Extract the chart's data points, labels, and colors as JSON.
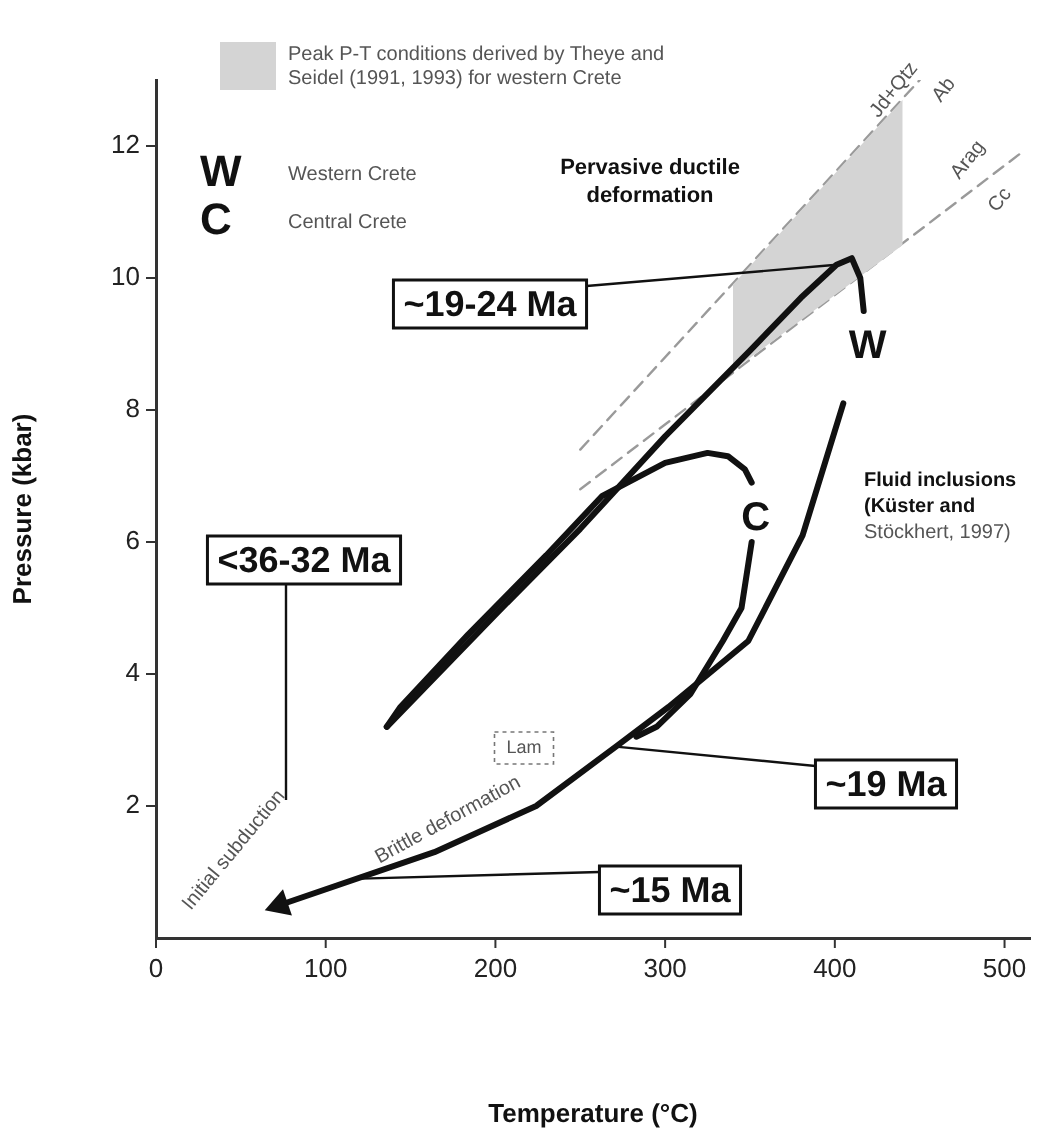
{
  "chart_data": {
    "type": "line",
    "xlabel": "Temperature (°C)",
    "ylabel": "Pressure (kbar)",
    "xlim": [
      0,
      515
    ],
    "ylim": [
      0,
      13
    ],
    "xticks": [
      0,
      100,
      200,
      300,
      400,
      500
    ],
    "yticks": [
      2,
      4,
      6,
      8,
      10,
      12
    ],
    "grid": false,
    "legend": "top left",
    "marker": "none",
    "series": [
      {
        "name": "Peak P-T conditions derived by Theye and Seidel (1991, 1993) for western Crete",
        "color": "#d4d4d4",
        "x": [
          340,
          440
        ],
        "values": [
          null,
          null
        ],
        "lower": [
          8.6,
          10.5
        ],
        "upper": [
          9.9,
          12.7
        ]
      },
      {
        "name": "W",
        "color": "#111111",
        "line_style": "solid",
        "x": [
          136,
          200,
          250,
          300,
          350,
          380,
          401,
          410,
          415,
          417
        ],
        "values": [
          3.2,
          4.9,
          6.2,
          7.6,
          8.9,
          9.7,
          10.2,
          10.3,
          10.0,
          9.5
        ]
      },
      {
        "color": "#111111",
        "line_style": "solid",
        "x": [
          405,
          381,
          349,
          302,
          271,
          224,
          164,
          73
        ],
        "values": [
          8.1,
          6.1,
          4.5,
          3.5,
          2.9,
          2.0,
          1.3,
          0.5
        ]
      },
      {
        "name": "C",
        "color": "#111111",
        "line_style": "solid",
        "x": [
          136,
          144,
          184,
          230,
          263,
          300,
          325,
          337,
          347,
          351
        ],
        "values": [
          3.2,
          3.5,
          4.6,
          5.8,
          6.7,
          7.2,
          7.35,
          7.3,
          7.1,
          6.9
        ]
      },
      {
        "color": "#111111",
        "line_style": "solid",
        "x": [
          351,
          345,
          334,
          315,
          295,
          283
        ],
        "values": [
          6.0,
          5.0,
          4.5,
          3.7,
          3.2,
          3.05
        ]
      },
      {
        "color": "#9a9a9a",
        "line_style": "dashed",
        "x": [
          250,
          450
        ],
        "values": [
          7.4,
          13.0
        ]
      },
      {
        "color": "#9a9a9a",
        "line_style": "dashed",
        "x": [
          250,
          510
        ],
        "values": [
          6.8,
          11.9
        ]
      }
    ],
    "annotations": [
      {
        "text": "~19-24 Ma",
        "x": 401,
        "y": 10.2
      },
      "<36-32 Ma",
      {
        "text": "~19 Ma",
        "x": 271,
        "y": 2.9
      },
      {
        "text": "~15 Ma",
        "x": 121,
        "y": 0.9
      },
      "Pervasive ductile deformation",
      "Fluid inclusions (Küster and Stöckhert, 1997)",
      "Brittle deformation",
      "Initial subduction",
      "Lam",
      "Western Crete",
      "Central Crete",
      "Jd+Qtz",
      "Ab",
      "Arag",
      "Cc"
    ]
  }
}
